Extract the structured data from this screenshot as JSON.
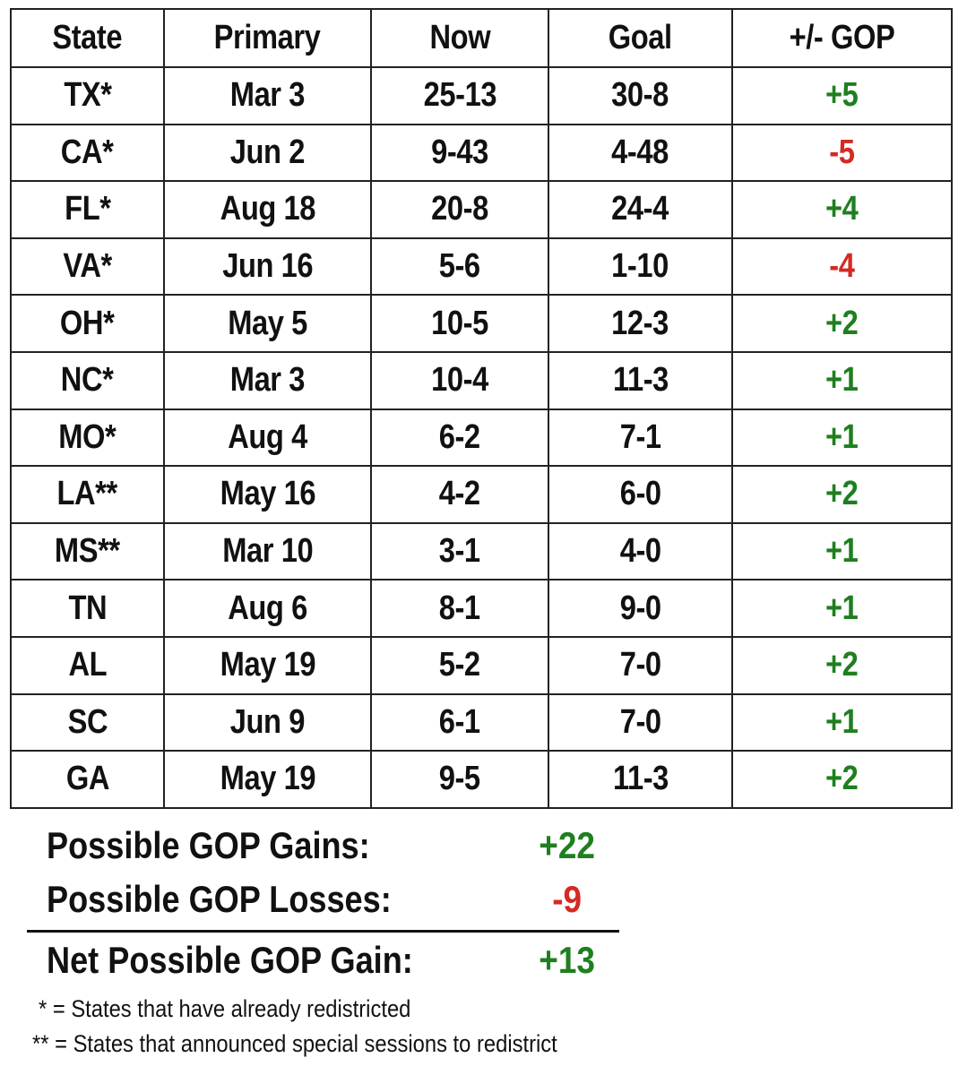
{
  "table": {
    "headers": [
      "State",
      "Primary",
      "Now",
      "Goal",
      "+/- GOP"
    ],
    "rows": [
      {
        "state": "TX*",
        "primary": "Mar 3",
        "now": "25-13",
        "goal": "30-8",
        "change": "+5",
        "sign": "pos"
      },
      {
        "state": "CA*",
        "primary": "Jun 2",
        "now": "9-43",
        "goal": "4-48",
        "change": "-5",
        "sign": "neg"
      },
      {
        "state": "FL*",
        "primary": "Aug 18",
        "now": "20-8",
        "goal": "24-4",
        "change": "+4",
        "sign": "pos"
      },
      {
        "state": "VA*",
        "primary": "Jun 16",
        "now": "5-6",
        "goal": "1-10",
        "change": "-4",
        "sign": "neg"
      },
      {
        "state": "OH*",
        "primary": "May 5",
        "now": "10-5",
        "goal": "12-3",
        "change": "+2",
        "sign": "pos"
      },
      {
        "state": "NC*",
        "primary": "Mar 3",
        "now": "10-4",
        "goal": "11-3",
        "change": "+1",
        "sign": "pos"
      },
      {
        "state": "MO*",
        "primary": "Aug 4",
        "now": "6-2",
        "goal": "7-1",
        "change": "+1",
        "sign": "pos"
      },
      {
        "state": "LA**",
        "primary": "May 16",
        "now": "4-2",
        "goal": "6-0",
        "change": "+2",
        "sign": "pos"
      },
      {
        "state": "MS**",
        "primary": "Mar 10",
        "now": "3-1",
        "goal": "4-0",
        "change": "+1",
        "sign": "pos"
      },
      {
        "state": "TN",
        "primary": "Aug 6",
        "now": "8-1",
        "goal": "9-0",
        "change": "+1",
        "sign": "pos"
      },
      {
        "state": "AL",
        "primary": "May 19",
        "now": "5-2",
        "goal": "7-0",
        "change": "+2",
        "sign": "pos"
      },
      {
        "state": "SC",
        "primary": "Jun 9",
        "now": "6-1",
        "goal": "7-0",
        "change": "+1",
        "sign": "pos"
      },
      {
        "state": "GA",
        "primary": "May 19",
        "now": "9-5",
        "goal": "11-3",
        "change": "+2",
        "sign": "pos"
      }
    ]
  },
  "summary": {
    "gains_label": "Possible GOP Gains:",
    "gains_value": "+22",
    "losses_label": "Possible GOP Losses:",
    "losses_value": "-9",
    "net_label": "Net Possible GOP Gain:",
    "net_value": "+13"
  },
  "notes": {
    "single": "* = States that have already redistricted",
    "double": "** = States that announced special sessions to redistrict"
  },
  "colors": {
    "positive": "#1f7f1f",
    "negative": "#d42a24",
    "text": "#111111",
    "border": "#222222"
  }
}
